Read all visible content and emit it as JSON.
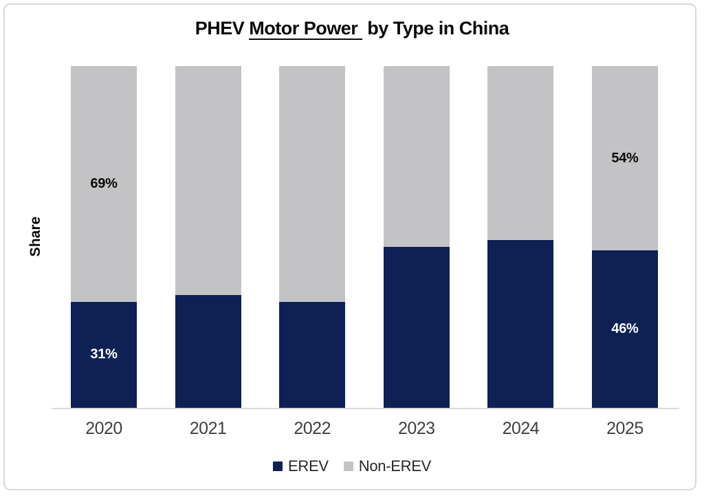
{
  "chart_data": {
    "type": "bar",
    "stacked": true,
    "title": {
      "prefix": "PHEV ",
      "underlined": "Motor Power",
      "suffix": "by Type in China",
      "full": "PHEV Motor Power by Type in China"
    },
    "ylabel": "Share",
    "categories": [
      "2020",
      "2021",
      "2022",
      "2023",
      "2024",
      "2025"
    ],
    "series": [
      {
        "name": "EREV",
        "color": "#0e2155",
        "values": [
          31,
          33,
          31,
          47,
          49,
          46
        ]
      },
      {
        "name": "Non-EREV",
        "color": "#c3c3c5",
        "values": [
          69,
          67,
          69,
          53,
          51,
          54
        ]
      }
    ],
    "ylim": [
      0,
      100
    ],
    "grid": false,
    "y_tick_labels_visible": false,
    "axis_line_color": "#dadada",
    "legend_position": "bottom",
    "data_labels": [
      {
        "category": "2020",
        "series": "Non-EREV",
        "text": "69%",
        "color": "#0a0a0a"
      },
      {
        "category": "2020",
        "series": "EREV",
        "text": "31%",
        "color": "#ffffff"
      },
      {
        "category": "2025",
        "series": "Non-EREV",
        "text": "54%",
        "color": "#0a0a0a"
      },
      {
        "category": "2025",
        "series": "EREV",
        "text": "46%",
        "color": "#ffffff"
      }
    ]
  }
}
